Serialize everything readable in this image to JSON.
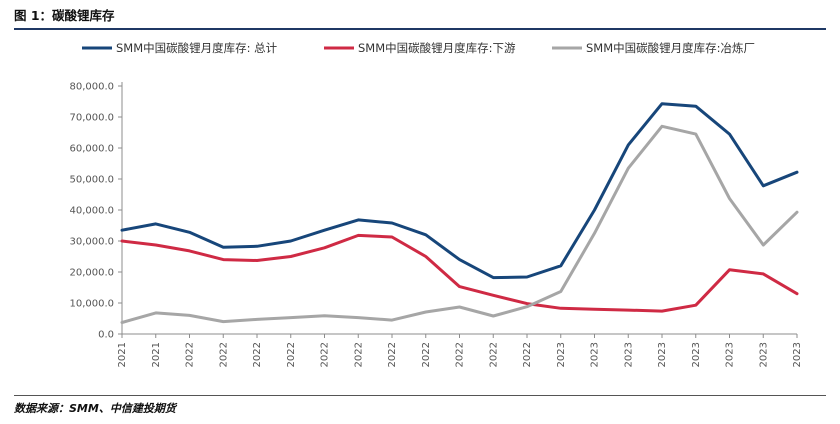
{
  "figure": {
    "title": "图 1：碳酸锂库存",
    "source": "数据来源：SMM、中信建投期货"
  },
  "chart_data": {
    "type": "line",
    "title": "",
    "xlabel": "",
    "ylabel": "",
    "ylim": [
      0,
      80000
    ],
    "yticks": [
      "0.0",
      "10,000.0",
      "20,000.0",
      "30,000.0",
      "40,000.0",
      "50,000.0",
      "60,000.0",
      "70,000.0",
      "80,000.0"
    ],
    "grid": false,
    "legend_position": "top",
    "categories": [
      "2021",
      "2021",
      "2022",
      "2022",
      "2022",
      "2022",
      "2022",
      "2022",
      "2022",
      "2022",
      "2022",
      "2022",
      "2022",
      "2023",
      "2023",
      "2023",
      "2023",
      "2023",
      "2023",
      "2023",
      "2023"
    ],
    "series": [
      {
        "name": "SMM中国碳酸锂月度库存: 总计",
        "color": "#17467a",
        "values": [
          33500,
          35500,
          32800,
          28000,
          28300,
          30000,
          33500,
          36800,
          35800,
          32000,
          24000,
          18200,
          18400,
          22000,
          40000,
          61000,
          74300,
          73500,
          64500,
          47800,
          52200
        ]
      },
      {
        "name": "SMM中国碳酸锂月度库存:下游",
        "color": "#cf2a44",
        "values": [
          30000,
          28700,
          26800,
          24000,
          23700,
          25000,
          27800,
          31800,
          31300,
          25000,
          15300,
          12500,
          9800,
          8300,
          8000,
          7700,
          7400,
          9300,
          20700,
          19400,
          13000
        ]
      },
      {
        "name": "SMM中国碳酸锂月度库存:冶炼厂",
        "color": "#a6a6a6",
        "values": [
          3700,
          6800,
          6000,
          4000,
          4700,
          5300,
          5900,
          5300,
          4500,
          7100,
          8700,
          5800,
          8800,
          13700,
          32500,
          53500,
          67000,
          64500,
          43700,
          28700,
          39300
        ]
      }
    ]
  }
}
